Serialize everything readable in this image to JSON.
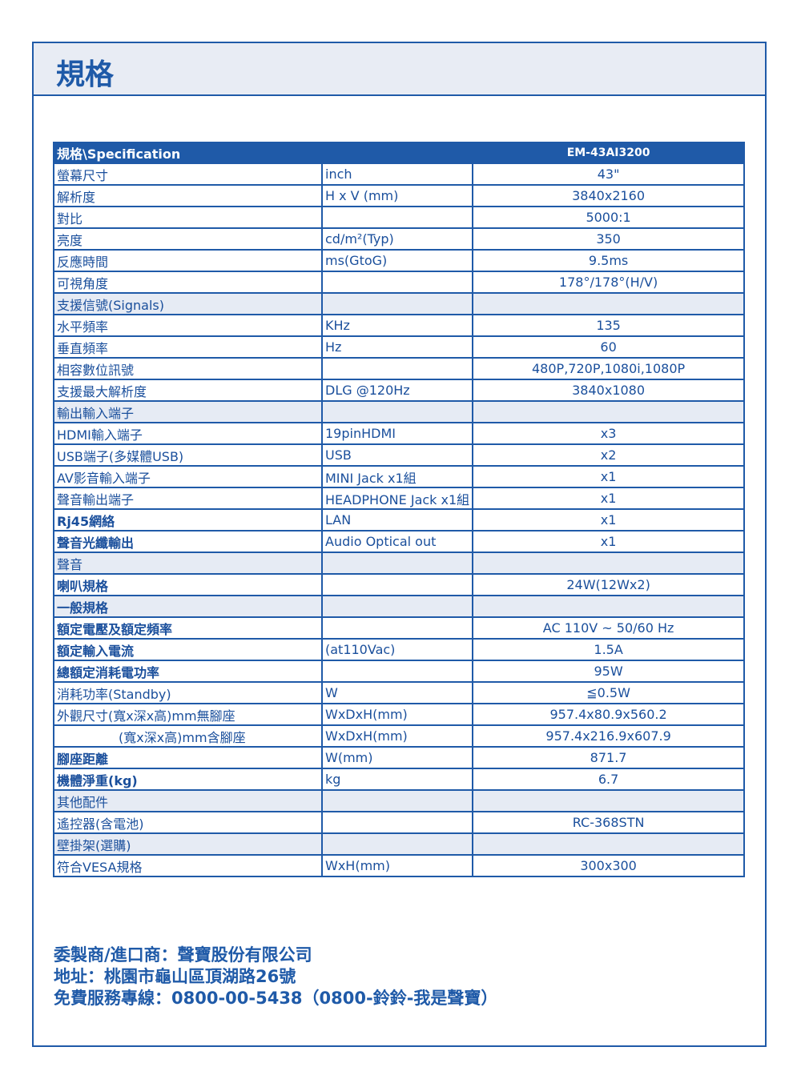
{
  "page_title": "規格",
  "table": {
    "header": [
      "規格\\Specification",
      "",
      "EM-43AI3200"
    ],
    "rows": [
      {
        "label": "螢幕尺寸",
        "unit": "inch",
        "value": "43\""
      },
      {
        "label": "解析度",
        "unit": "H x V (mm)",
        "value": "3840x2160"
      },
      {
        "label": "對比",
        "unit": "",
        "value": "5000:1"
      },
      {
        "label": "亮度",
        "unit": "cd/m²(Typ)",
        "value": "350"
      },
      {
        "label": "反應時間",
        "unit": "ms(GtoG)",
        "value": "9.5ms"
      },
      {
        "label": "可視角度",
        "unit": "",
        "value": "178°/178°(H/V)"
      },
      {
        "label": "支援信號(Signals)",
        "unit": "",
        "value": "",
        "section": true
      },
      {
        "label": "水平頻率",
        "unit": "KHz",
        "value": "135"
      },
      {
        "label": "垂直頻率",
        "unit": "Hz",
        "value": "60"
      },
      {
        "label": "相容數位訊號",
        "unit": "",
        "value": "480P,720P,1080i,1080P"
      },
      {
        "label": "支援最大解析度",
        "unit": "DLG  @120Hz",
        "value": "3840x1080"
      },
      {
        "label": "輸出輸入端子",
        "unit": "",
        "value": "",
        "section": true
      },
      {
        "label": "HDMI輸入端子",
        "unit": "19pinHDMI",
        "value": "x3"
      },
      {
        "label": "USB端子(多媒體USB)",
        "unit": "USB",
        "value": "x2"
      },
      {
        "label": "AV影音輸入端子",
        "unit": "MINI Jack x1組",
        "value": "x1"
      },
      {
        "label": "聲音輸出端子",
        "unit": "HEADPHONE Jack x1組",
        "value": "x1"
      },
      {
        "label": "Rj45網絡",
        "unit": "LAN",
        "value": "x1",
        "bold": true
      },
      {
        "label": "聲音光纖輸出",
        "unit": "Audio Optical out",
        "value": "x1",
        "bold": true
      },
      {
        "label": "聲音",
        "unit": "",
        "value": "",
        "section": true
      },
      {
        "label": "喇叭規格",
        "unit": "",
        "value": "24W(12Wx2)",
        "bold": true
      },
      {
        "label": "一般規格",
        "unit": "",
        "value": "",
        "section": true,
        "bold": true
      },
      {
        "label": "額定電壓及額定頻率",
        "unit": "",
        "value": "AC 110V ~  50/60 Hz",
        "bold": true
      },
      {
        "label": "額定輸入電流",
        "unit": "(at110Vac)",
        "value": "1.5A",
        "bold": true
      },
      {
        "label": "總額定消耗電功率",
        "unit": "",
        "value": "95W",
        "bold": true
      },
      {
        "label": "消耗功率(Standby)",
        "unit": "W",
        "value": "≦0.5W"
      },
      {
        "label": "外觀尺寸(寬x深x高)mm無腳座",
        "unit": "WxDxH(mm)",
        "value": "957.4x80.9x560.2"
      },
      {
        "label": "(寬x深x高)mm含腳座",
        "unit": "WxDxH(mm)",
        "value": "957.4x216.9x607.9",
        "indent": true
      },
      {
        "label": "腳座距離",
        "unit": "W(mm)",
        "value": "871.7",
        "bold": true
      },
      {
        "label": "機體淨重(kg)",
        "unit": "kg",
        "value": "6.7",
        "bold": true
      },
      {
        "label": "其他配件",
        "unit": "",
        "value": "",
        "section": true
      },
      {
        "label": "遙控器(含電池)",
        "unit": "",
        "value": "RC-368STN"
      },
      {
        "label": "壁掛架(選購)",
        "unit": "",
        "value": "",
        "section": true
      },
      {
        "label": "符合VESA規格",
        "unit": "WxH(mm)",
        "value": "300x300"
      }
    ]
  },
  "footer": {
    "importer": "委製商/進口商：聲寶股份有限公司",
    "address": "地址：桃園市龜山區頂湖路26號",
    "hotline": "免費服務專線：0800-00-5438（0800-鈴鈴-我是聲寶）"
  },
  "colors": {
    "brand": "#1f5aa8",
    "shade": "#e6ebf4"
  }
}
